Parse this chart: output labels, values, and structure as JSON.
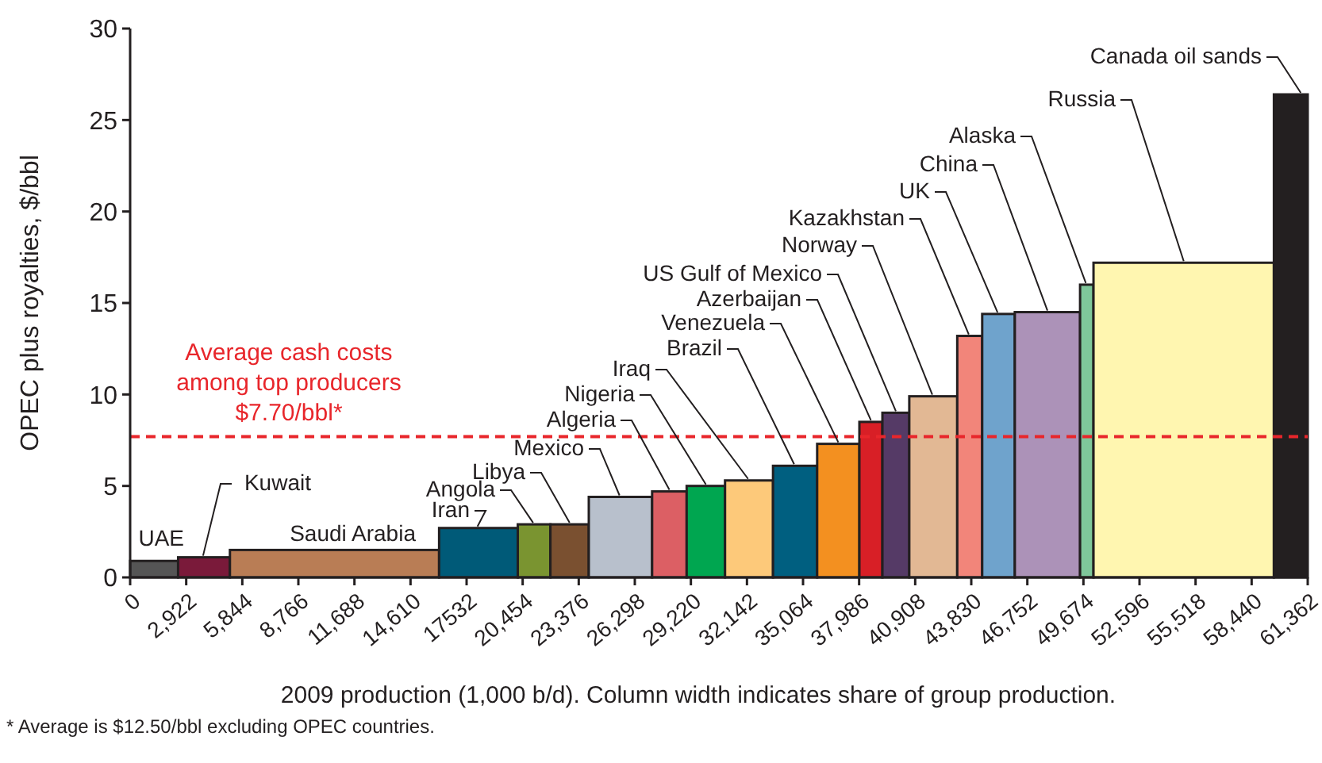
{
  "chart_data": {
    "type": "histogram",
    "xlabel": "2009 production (1,000 b/d). Column width indicates share of group production.",
    "ylabel": "OPEC plus royalties, $/bbl",
    "bins": [
      0,
      2500,
      5200,
      16100,
      20200,
      21900,
      23900,
      27200,
      29000,
      31000,
      33500,
      35800,
      38000,
      39200,
      40600,
      43100,
      44400,
      46100,
      49500,
      50200,
      59600,
      61362
    ],
    "values": [
      0.9,
      1.1,
      1.5,
      2.7,
      2.9,
      2.9,
      4.4,
      4.7,
      5.0,
      5.3,
      6.1,
      7.3,
      8.5,
      9.0,
      9.9,
      13.2,
      14.4,
      14.5,
      16.0,
      17.2,
      26.4
    ],
    "colors": [
      "#555555",
      "#7a1a3a",
      "#b97d55",
      "#005a78",
      "#7a9430",
      "#7a5030",
      "#b8c0cc",
      "#dc5f64",
      "#00a650",
      "#fdc97a",
      "#005f80",
      "#f39020",
      "#d81f26",
      "#553a66",
      "#e2b894",
      "#f2857a",
      "#6fa3cc",
      "#ac92b8",
      "#7fc79b",
      "#fff6b0",
      "#231f20"
    ],
    "xlim": [
      0,
      61362
    ],
    "xticks": [
      0,
      {
        "value": 2922,
        "label": "2,922"
      },
      {
        "value": 5844,
        "label": "5,844"
      },
      {
        "value": 8766,
        "label": "8,766"
      },
      {
        "value": 11688,
        "label": "11,688"
      },
      {
        "value": 14610,
        "label": "14,610"
      },
      17532,
      {
        "value": 20454,
        "label": "20,454"
      },
      {
        "value": 23376,
        "label": "23,376"
      },
      {
        "value": 26298,
        "label": "26,298"
      },
      {
        "value": 29220,
        "label": "29,220"
      },
      {
        "value": 32142,
        "label": "32,142"
      },
      {
        "value": 35064,
        "label": "35,064"
      },
      {
        "value": 37986,
        "label": "37,986"
      },
      {
        "value": 40908,
        "label": "40,908"
      },
      {
        "value": 43830,
        "label": "43,830"
      },
      {
        "value": 46752,
        "label": "46,752"
      },
      {
        "value": 49674,
        "label": "49,674"
      },
      {
        "value": 52596,
        "label": "52,596"
      },
      {
        "value": 55518,
        "label": "55,518"
      },
      {
        "value": 58440,
        "label": "58,440"
      },
      {
        "value": 61362,
        "label": "61,362"
      }
    ],
    "ylim": [
      0,
      30
    ],
    "yticks": [
      0,
      5,
      10,
      15,
      20,
      25,
      30
    ],
    "ref_lines": [
      {
        "axis": "y",
        "value": 7.7,
        "label": "Average cash costs\namong top producers\n$7.70/bbl*",
        "color": "#e8262b",
        "line_style": "dashed"
      }
    ],
    "annotations": [
      {
        "text": "UAE",
        "x": 1250,
        "y": 0.9
      },
      {
        "text": "Kuwait",
        "x": 3800,
        "y": 1.1
      },
      {
        "text": "Saudi Arabia",
        "x": 10650,
        "y": 1.5
      },
      {
        "text": "Iran",
        "x": 18100,
        "y": 2.7
      },
      {
        "text": "Angola",
        "x": 21000,
        "y": 2.9
      },
      {
        "text": "Libya",
        "x": 22900,
        "y": 2.9
      },
      {
        "text": "Mexico",
        "x": 25500,
        "y": 4.4
      },
      {
        "text": "Algeria",
        "x": 28100,
        "y": 4.7
      },
      {
        "text": "Nigeria",
        "x": 30000,
        "y": 5.0
      },
      {
        "text": "Iraq",
        "x": 32200,
        "y": 5.3
      },
      {
        "text": "Brazil",
        "x": 34600,
        "y": 6.1
      },
      {
        "text": "Venezuela",
        "x": 36900,
        "y": 7.3
      },
      {
        "text": "Azerbaijan",
        "x": 38600,
        "y": 8.5
      },
      {
        "text": "US Gulf of Mexico",
        "x": 39900,
        "y": 9.0
      },
      {
        "text": "Norway",
        "x": 41800,
        "y": 9.9
      },
      {
        "text": "Kazakhstan",
        "x": 43700,
        "y": 13.2
      },
      {
        "text": "UK",
        "x": 45200,
        "y": 14.4
      },
      {
        "text": "China",
        "x": 47800,
        "y": 14.5
      },
      {
        "text": "Alaska",
        "x": 49800,
        "y": 16.0
      },
      {
        "text": "Russia",
        "x": 54900,
        "y": 17.2
      },
      {
        "text": "Canada oil sands",
        "x": 61000,
        "y": 26.4
      },
      "* Average is $12.50/bbl excluding OPEC countries."
    ]
  }
}
